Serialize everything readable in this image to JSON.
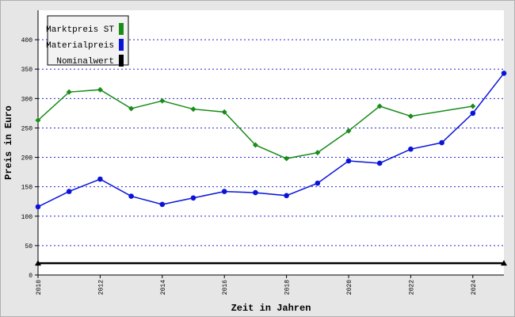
{
  "chart_data": {
    "type": "line",
    "x_label": "Zeit in Jahren",
    "y_label": "Preis in Euro",
    "xlim": [
      2010,
      2025
    ],
    "xticks": [
      2010,
      2012,
      2014,
      2016,
      2018,
      2020,
      2022,
      2024
    ],
    "ylim": [
      0,
      450
    ],
    "yticks": [
      0,
      50,
      100,
      150,
      200,
      250,
      300,
      350,
      400
    ],
    "grid": true,
    "legend": "upper left",
    "series": [
      {
        "name": "Marktpreis ST",
        "color": "#1a8c1a",
        "marker": "diamond",
        "x": [
          2010,
          2011,
          2012,
          2013,
          2014,
          2015,
          2016,
          2017,
          2018,
          2019,
          2020,
          2021,
          2022,
          2024
        ],
        "values": [
          263,
          311,
          315,
          283,
          296,
          282,
          277,
          221,
          198,
          208,
          245,
          287,
          270,
          287
        ]
      },
      {
        "name": "Materialpreis",
        "color": "#0a14d8",
        "marker": "circle",
        "x": [
          2010,
          2011,
          2012,
          2013,
          2014,
          2015,
          2016,
          2017,
          2018,
          2019,
          2020,
          2021,
          2022,
          2023,
          2024,
          2025
        ],
        "values": [
          116,
          142,
          163,
          134,
          120,
          131,
          142,
          140,
          135,
          156,
          194,
          190,
          214,
          225,
          275,
          343
        ]
      },
      {
        "name": "Nominalwert",
        "color": "#000000",
        "marker": "triangle",
        "x": [
          2010,
          2025
        ],
        "values": [
          20,
          20
        ]
      }
    ]
  }
}
